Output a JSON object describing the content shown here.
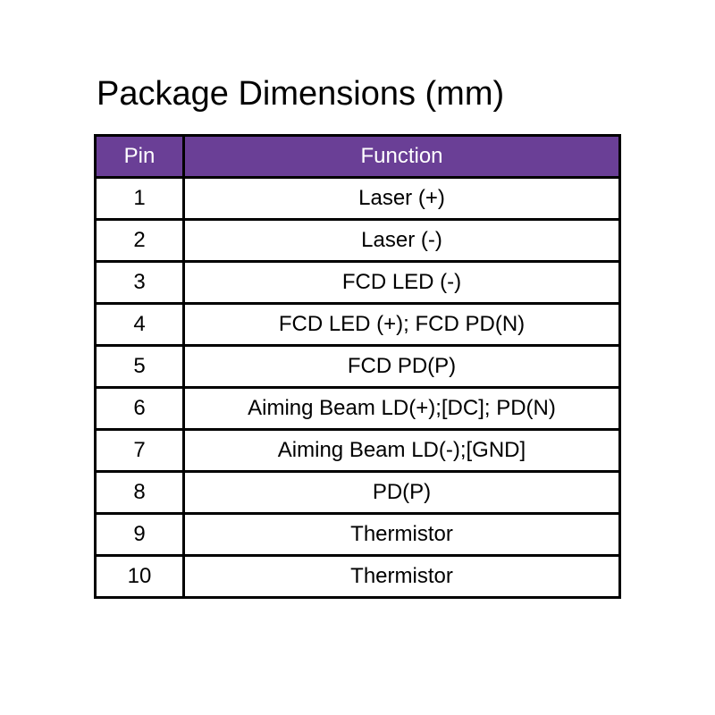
{
  "title": "Package Dimensions (mm)",
  "header_color": "#6a3f96",
  "table": {
    "headers": [
      "Pin",
      "Function"
    ],
    "rows": [
      [
        "1",
        "Laser (+)"
      ],
      [
        "2",
        "Laser (-)"
      ],
      [
        "3",
        "FCD LED (-)"
      ],
      [
        "4",
        "FCD LED (+); FCD PD(N)"
      ],
      [
        "5",
        "FCD PD(P)"
      ],
      [
        "6",
        "Aiming Beam LD(+);[DC]; PD(N)"
      ],
      [
        "7",
        "Aiming Beam LD(-);[GND]"
      ],
      [
        "8",
        "PD(P)"
      ],
      [
        "9",
        "Thermistor"
      ],
      [
        "10",
        "Thermistor"
      ]
    ]
  }
}
